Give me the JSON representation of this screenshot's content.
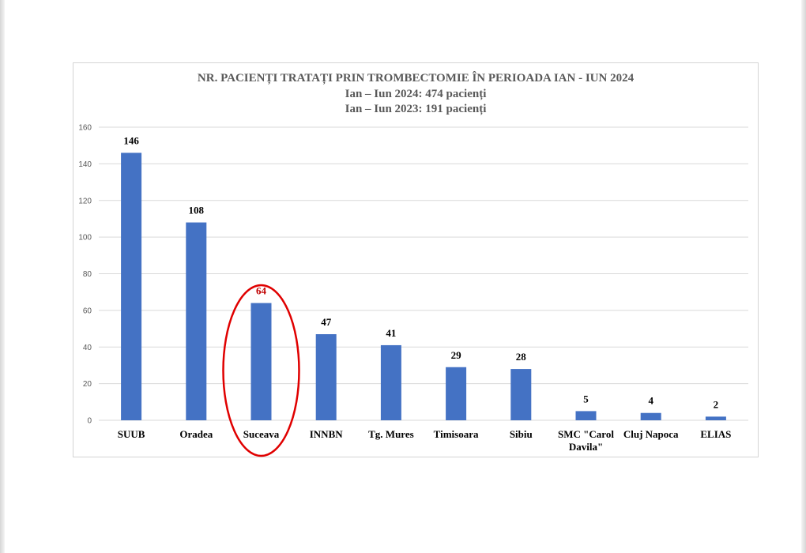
{
  "chart_data": {
    "type": "bar",
    "title": "NR. PACIENȚI TRATAȚI PRIN TROMBECTOMIE ÎN PERIOADA IAN - IUN 2024",
    "subtitles": [
      "Ian – Iun 2024: 474 pacienți",
      "Ian – Iun 2023: 191 pacienți"
    ],
    "categories": [
      "SUUB",
      "Oradea",
      "Suceava",
      "INNBN",
      "Tg. Mures",
      "Timisoara",
      "Sibiu",
      "SMC \"Carol Davila\"",
      "Cluj Napoca",
      "ELIAS"
    ],
    "values": [
      146,
      108,
      64,
      47,
      41,
      29,
      28,
      5,
      4,
      2
    ],
    "ylim": [
      0,
      160
    ],
    "yticks": [
      0,
      20,
      40,
      60,
      80,
      100,
      120,
      140,
      160
    ],
    "grid": true,
    "legend": "none",
    "highlight": {
      "category": "Suceava",
      "label_color": "#c00000",
      "circle_color": "#e00000"
    },
    "colors": {
      "bar": "#4472c4",
      "grid": "#d9d9d9",
      "axis_text": "#595959",
      "label": "#000000"
    }
  }
}
